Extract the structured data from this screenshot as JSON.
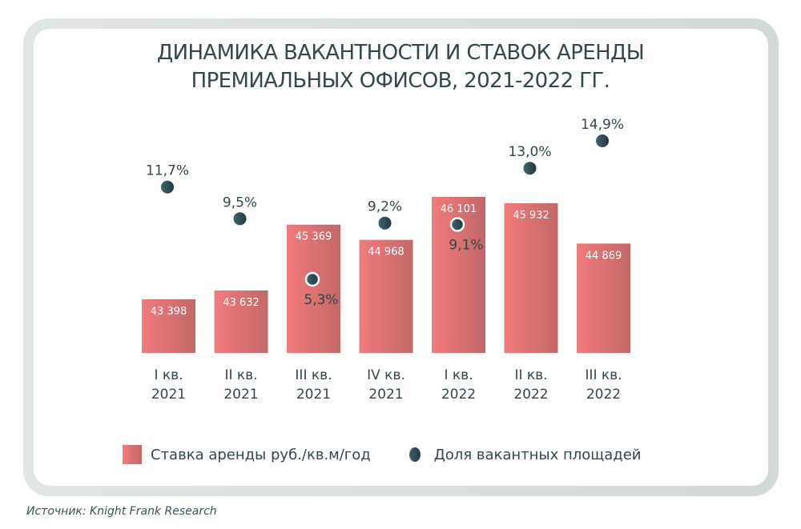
{
  "title": {
    "line1": "ДИНАМИКА ВАКАНТНОСТИ И СТАВОК АРЕНДЫ",
    "line2": "ПРЕМИАЛЬНЫХ ОФИСОВ, 2021-2022 ГГ."
  },
  "colors": {
    "bar_left": "#f27b7b",
    "bar_right": "#c26868",
    "dot_left": "#3f6670",
    "dot_right": "#23383f",
    "axis": "#33474d",
    "text": "#33474d",
    "frame": "#d9dfdb"
  },
  "chart_data": {
    "type": "bar",
    "title": "ДИНАМИКА ВАКАНТНОСТИ И СТАВОК АРЕНДЫ ПРЕМИАЛЬНЫХ ОФИСОВ, 2021-2022 ГГ.",
    "xlabel": "",
    "ylabel": "",
    "grid": false,
    "legend_position": "bottom",
    "categories": [
      [
        "I кв.",
        "2021"
      ],
      [
        "II кв.",
        "2021"
      ],
      [
        "III кв.",
        "2021"
      ],
      [
        "IV кв.",
        "2021"
      ],
      [
        "I кв.",
        "2022"
      ],
      [
        "II кв.",
        "2022"
      ],
      [
        "III кв.",
        "2022"
      ]
    ],
    "series": [
      {
        "name": "Ставка аренды руб./кв.м/год",
        "type": "bar",
        "values": [
          43398,
          43632,
          45369,
          44968,
          46101,
          45932,
          44869
        ],
        "labels": [
          "43 398",
          "43 632",
          "45 369",
          "44 968",
          "46 101",
          "45 932",
          "44 869"
        ],
        "axis_range": [
          41983,
          46101
        ]
      },
      {
        "name": "Доля вакантных площадей",
        "type": "scatter",
        "unit": "%",
        "values": [
          11.7,
          9.5,
          5.3,
          9.2,
          9.1,
          13.0,
          14.9
        ],
        "labels": [
          "11,7%",
          "9,5%",
          "5,3%",
          "9,2%",
          "9,1%",
          "13,0%",
          "14,9%"
        ],
        "label_position": [
          "above",
          "above",
          "below",
          "above",
          "below",
          "above",
          "above"
        ],
        "axis_range": [
          5.3,
          14.9
        ]
      }
    ]
  },
  "legend": {
    "items": [
      {
        "label": "Ставка аренды руб./кв.м/год",
        "icon": "bar-swatch"
      },
      {
        "label": "Доля вакантных площадей",
        "icon": "dot-marker"
      }
    ]
  },
  "source": "Источник: Knight Frank Research"
}
